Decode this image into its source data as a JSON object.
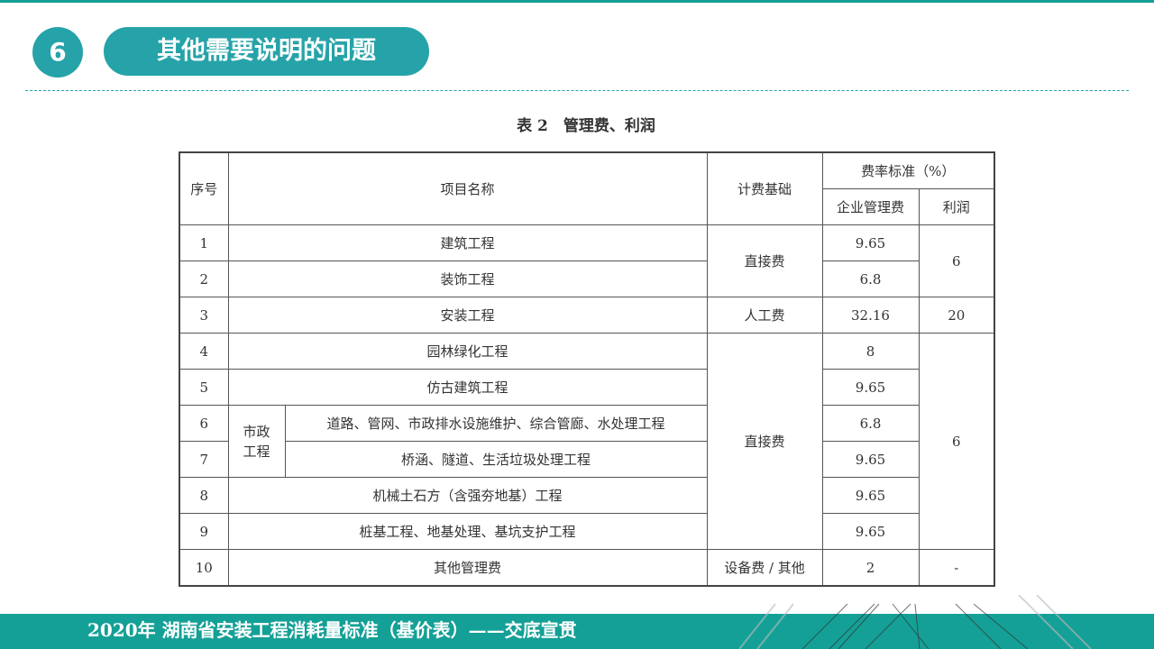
{
  "header": {
    "number": "6",
    "title": "其他需要说明的问题"
  },
  "caption": "表 2　管理费、利润",
  "table": {
    "h_index": "序号",
    "h_name": "项目名称",
    "h_base": "计费基础",
    "h_rate": "费率标准（%）",
    "h_mgmt": "企业管理费",
    "h_profit": "利润",
    "group_label": "市政工程",
    "rows": [
      {
        "no": "1",
        "name": "建筑工程",
        "base": "直接费",
        "mgmt": "9.65",
        "profit": "6"
      },
      {
        "no": "2",
        "name": "装饰工程",
        "mgmt": "6.8"
      },
      {
        "no": "3",
        "name": "安装工程",
        "base": "人工费",
        "mgmt": "32.16",
        "profit": "20"
      },
      {
        "no": "4",
        "name": "园林绿化工程",
        "base": "直接费",
        "mgmt": "8",
        "profit": "6"
      },
      {
        "no": "5",
        "name": "仿古建筑工程",
        "mgmt": "9.65"
      },
      {
        "no": "6",
        "name": "道路、管网、市政排水设施维护、综合管廊、水处理工程",
        "mgmt": "6.8"
      },
      {
        "no": "7",
        "name": "桥涵、隧道、生活垃圾处理工程",
        "mgmt": "9.65"
      },
      {
        "no": "8",
        "name": "机械土石方（含强夯地基）工程",
        "mgmt": "9.65"
      },
      {
        "no": "9",
        "name": "桩基工程、地基处理、基坑支护工程",
        "mgmt": "9.65"
      },
      {
        "no": "10",
        "name": "其他管理费",
        "base": "设备费 / 其他",
        "mgmt": "2",
        "profit": "-"
      }
    ]
  },
  "footer": {
    "text": "2020年  湖南省安装工程消耗量标准（基价表）——交底宣贯"
  },
  "colors": {
    "accent": "#26a3a8",
    "footer": "#14a096"
  }
}
